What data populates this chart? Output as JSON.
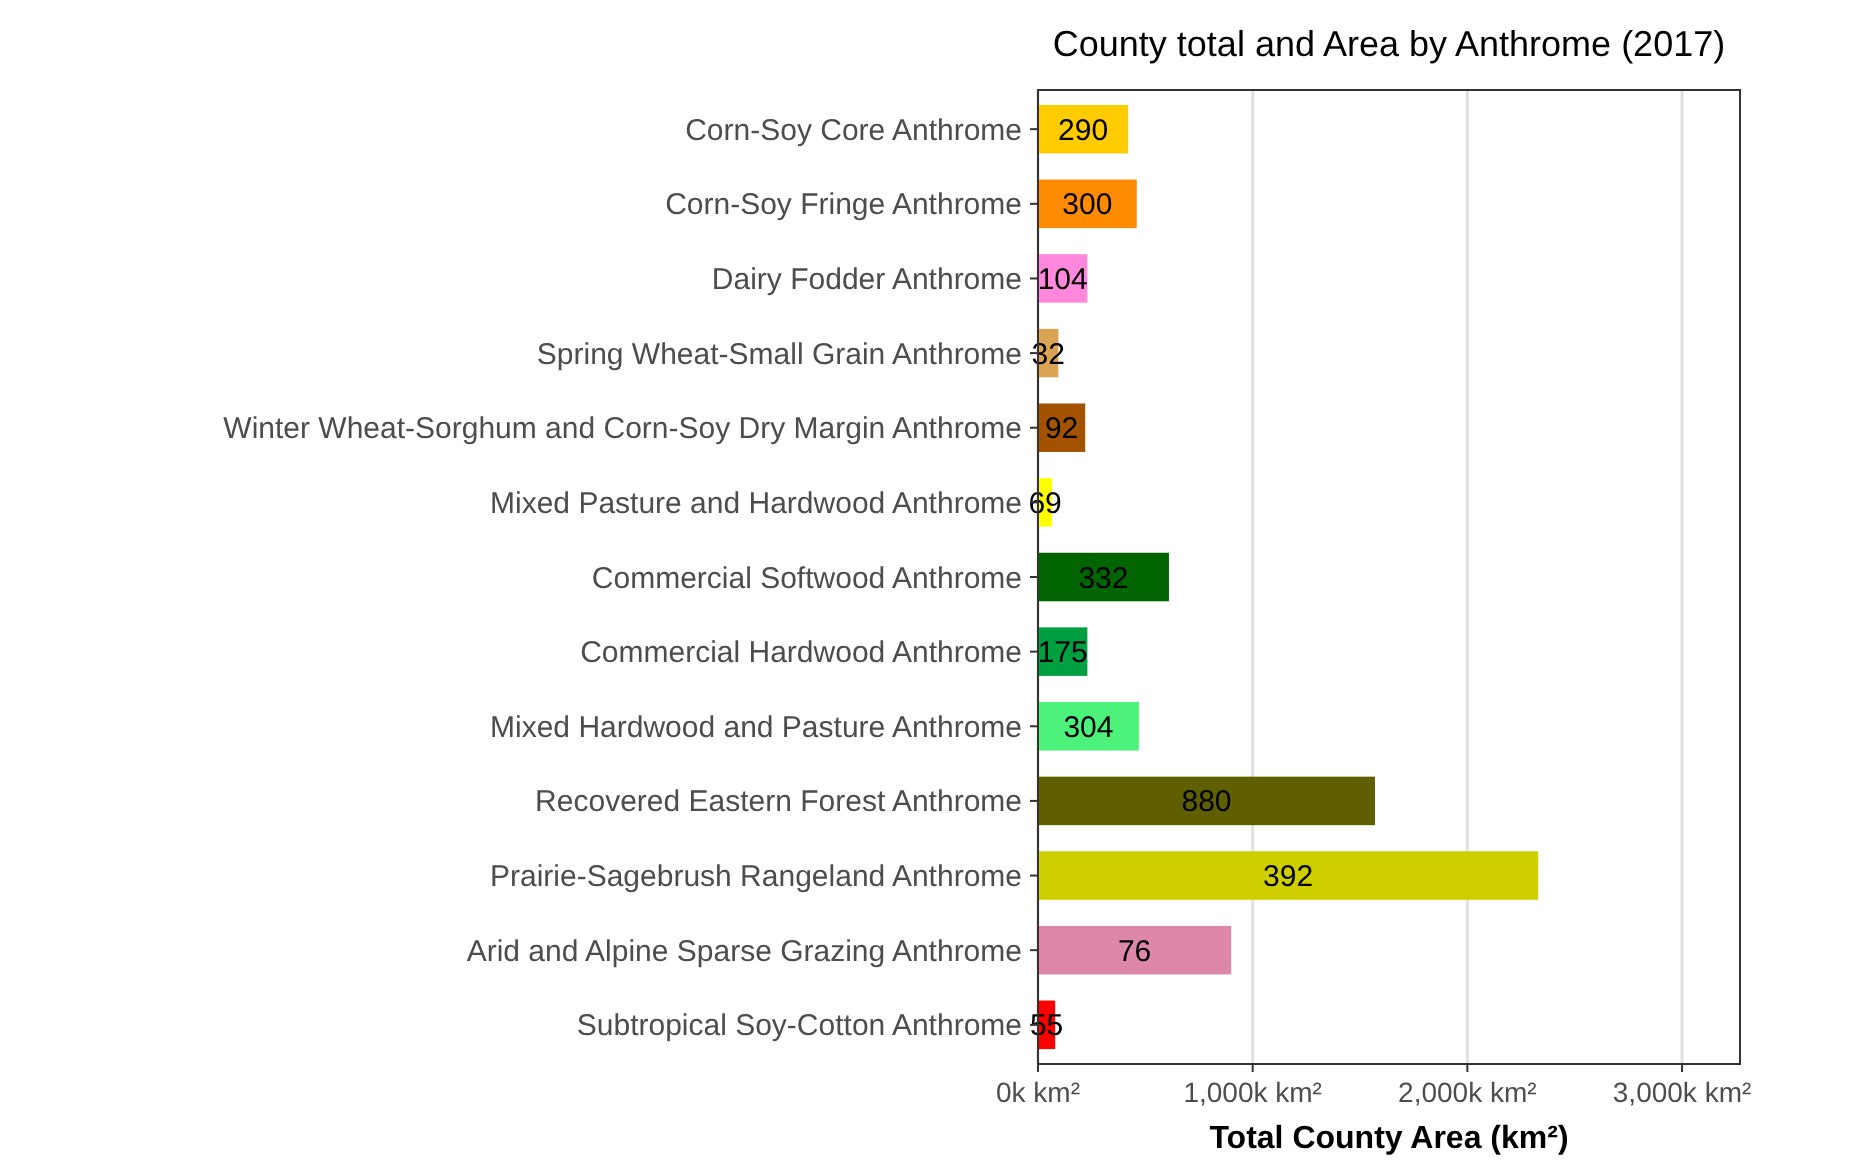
{
  "chart_data": {
    "type": "bar",
    "orientation": "horizontal",
    "title": "County total and Area by Anthrome (2017)",
    "xlabel": "Total County Area (km²)",
    "categories": [
      "Corn-Soy Core Anthrome",
      "Corn-Soy Fringe Anthrome",
      "Dairy Fodder Anthrome",
      "Spring Wheat-Small Grain Anthrome",
      "Winter Wheat-Sorghum and Corn-Soy Dry Margin Anthrome",
      "Mixed Pasture and Hardwood Anthrome",
      "Commercial Softwood Anthrome",
      "Commercial Hardwood Anthrome",
      "Mixed Hardwood and Pasture Anthrome",
      "Recovered Eastern Forest Anthrome",
      "Prairie-Sagebrush Rangeland Anthrome",
      "Arid and Alpine Sparse Grazing Anthrome",
      "Subtropical Soy-Cotton Anthrome"
    ],
    "values": [
      420,
      460,
      230,
      95,
      220,
      65,
      610,
      230,
      470,
      1570,
      2330,
      900,
      80
    ],
    "colors": [
      "#ffcc00",
      "#ff8c00",
      "#ff88dd",
      "#d9a555",
      "#a35200",
      "#ffff00",
      "#006400",
      "#00a040",
      "#4cf27a",
      "#5f5f00",
      "#cfcf00",
      "#dd88aa",
      "#ff0000"
    ],
    "annotations": [
      {
        "text": "290",
        "x": 210,
        "y": "Corn-Soy Core Anthrome"
      },
      {
        "text": "300",
        "x": 230,
        "y": "Corn-Soy Fringe Anthrome"
      },
      {
        "text": "104",
        "x": 115,
        "y": "Dairy Fodder Anthrome"
      },
      {
        "text": "32",
        "x": 48,
        "y": "Spring Wheat-Small Grain Anthrome"
      },
      {
        "text": "92",
        "x": 110,
        "y": "Winter Wheat-Sorghum and Corn-Soy Dry Margin Anthrome"
      },
      {
        "text": "69",
        "x": 33,
        "y": "Mixed Pasture and Hardwood Anthrome"
      },
      {
        "text": "332",
        "x": 305,
        "y": "Commercial Softwood Anthrome"
      },
      {
        "text": "175",
        "x": 115,
        "y": "Commercial Hardwood Anthrome"
      },
      {
        "text": "304",
        "x": 235,
        "y": "Mixed Hardwood and Pasture Anthrome"
      },
      {
        "text": "880",
        "x": 785,
        "y": "Recovered Eastern Forest Anthrome"
      },
      {
        "text": "392",
        "x": 1165,
        "y": "Prairie-Sagebrush Rangeland Anthrome"
      },
      {
        "text": "76",
        "x": 450,
        "y": "Arid and Alpine Sparse Grazing Anthrome"
      },
      {
        "text": "55",
        "x": 40,
        "y": "Subtropical Soy-Cotton Anthrome"
      }
    ],
    "xlim": [
      0,
      3270
    ],
    "xticks": [
      {
        "value": 0,
        "label": "0k km²"
      },
      {
        "value": 1000,
        "label": "1,000k km²"
      },
      {
        "value": 2000,
        "label": "2,000k km²"
      },
      {
        "value": 3000,
        "label": "3,000k km²"
      }
    ],
    "grid": "x"
  }
}
